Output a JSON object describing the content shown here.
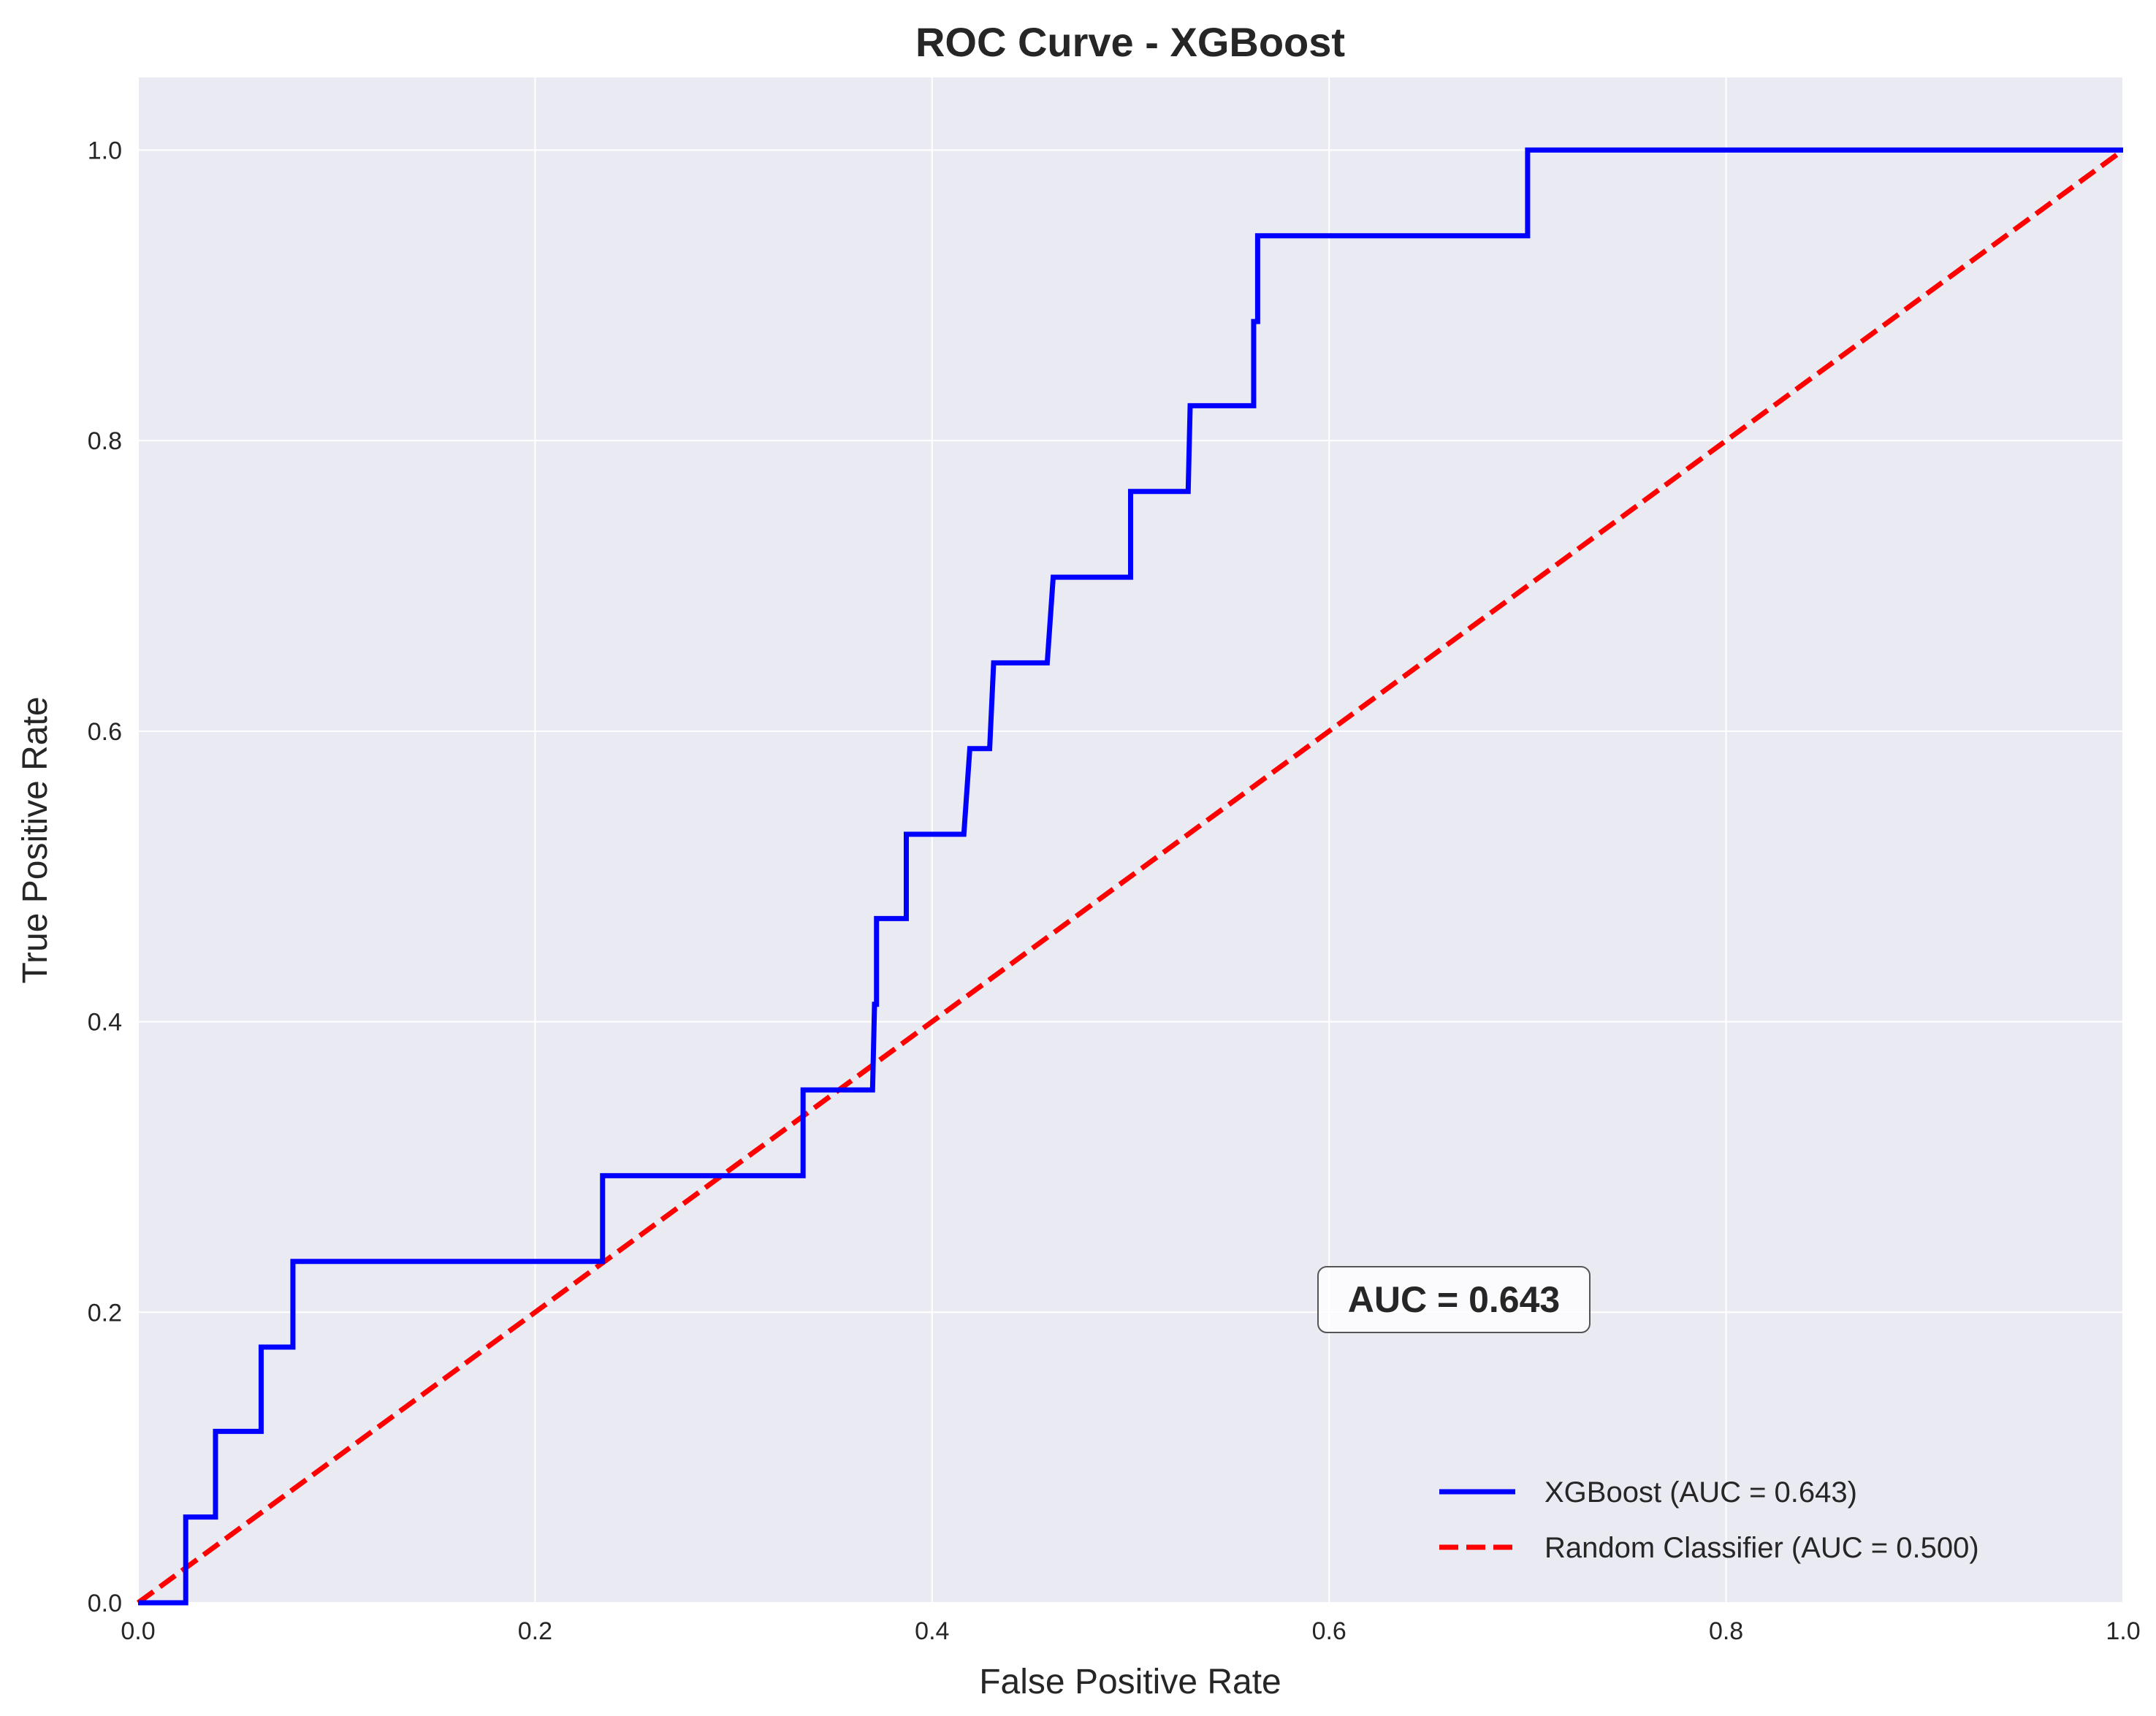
{
  "chart_data": {
    "type": "line",
    "title": "ROC Curve - XGBoost",
    "xlabel": "False Positive Rate",
    "ylabel": "True Positive Rate",
    "xlim": [
      0.0,
      1.0
    ],
    "ylim": [
      0.0,
      1.05
    ],
    "xticks": [
      "0.0",
      "0.2",
      "0.4",
      "0.6",
      "0.8",
      "1.0"
    ],
    "yticks": [
      "0.0",
      "0.2",
      "0.4",
      "0.6",
      "0.8",
      "1.0"
    ],
    "grid": true,
    "legend_position": "lower-right",
    "annotation": "AUC = 0.643",
    "series": [
      {
        "name": "XGBoost (AUC = 0.643)",
        "color": "#0000ff",
        "style": "solid",
        "x": [
          0.0,
          0.024,
          0.024,
          0.039,
          0.039,
          0.062,
          0.062,
          0.078,
          0.078,
          0.234,
          0.234,
          0.335,
          0.335,
          0.37,
          0.371,
          0.372,
          0.372,
          0.387,
          0.387,
          0.416,
          0.419,
          0.429,
          0.431,
          0.458,
          0.461,
          0.5,
          0.5,
          0.529,
          0.53,
          0.562,
          0.562,
          0.564,
          0.564,
          0.7,
          0.7,
          1.0
        ],
        "y": [
          0.0,
          0.0,
          0.059,
          0.059,
          0.118,
          0.118,
          0.176,
          0.176,
          0.235,
          0.235,
          0.294,
          0.294,
          0.353,
          0.353,
          0.412,
          0.412,
          0.471,
          0.471,
          0.529,
          0.529,
          0.588,
          0.588,
          0.647,
          0.647,
          0.706,
          0.706,
          0.765,
          0.765,
          0.824,
          0.824,
          0.882,
          0.882,
          0.941,
          0.941,
          1.0,
          1.0
        ]
      },
      {
        "name": "Random Classifier (AUC = 0.500)",
        "color": "#ff0000",
        "style": "dashed",
        "x": [
          0.0,
          1.0
        ],
        "y": [
          0.0,
          1.0
        ]
      }
    ]
  }
}
